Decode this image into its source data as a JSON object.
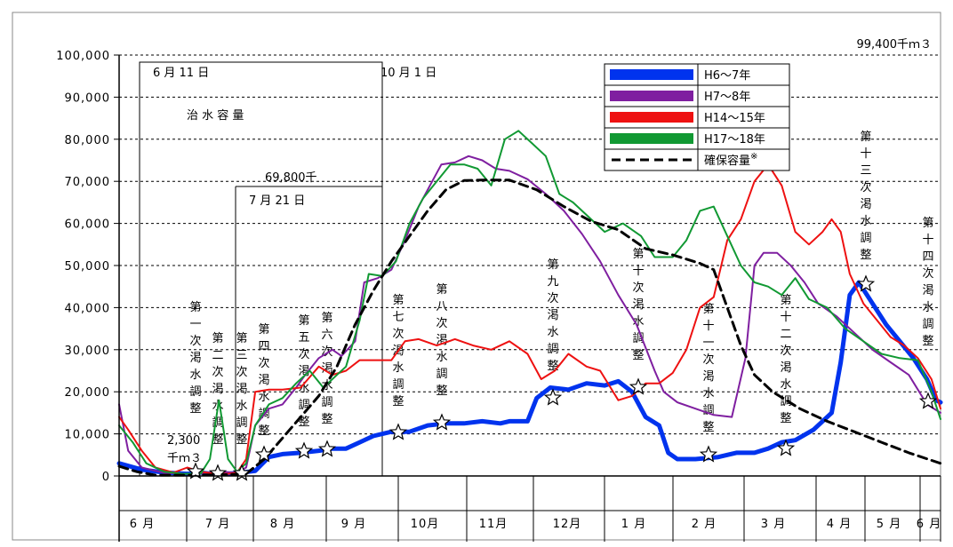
{
  "chart_data": {
    "type": "line",
    "ylim": [
      0,
      100000
    ],
    "y_ticks": [
      "0",
      "10,000",
      "20,000",
      "30,000",
      "40,000",
      "50,000",
      "60,000",
      "70,000",
      "80,000",
      "90,000",
      "100,000"
    ],
    "x_categories": [
      "6 月",
      "7 月",
      "8 月",
      "9 月",
      "10月",
      "11月",
      "12月",
      "1 月",
      "2 月",
      "3 月",
      "4 月",
      "5 月",
      "6 月"
    ],
    "legend": [
      "H6〜7年",
      "H7〜8年",
      "H14〜15年",
      "H17〜18年",
      "確保容量"
    ],
    "legend_note": "※",
    "annotations": {
      "top_right": "99,400千ｍ３",
      "jun11": "6 月 11 日",
      "oct1": "10 月 1 日",
      "flood": "治 水 容 量",
      "cap69800": "69,800千",
      "jul21": "7 月 21 日",
      "cap2300_a": "2,300",
      "cap2300_b": "千ｍ３"
    },
    "adjustments": [
      "第一次渇水調整",
      "第二次渇水調整",
      "第三次渇水調整",
      "第四次渇水調整",
      "第五次渇水調整",
      "第六次渇水調整",
      "第七次渇水調整",
      "第八次渇水調整",
      "第九次渇水調整",
      "第十次渇水調整",
      "第十一次渇水調整",
      "第十二次渇水調整",
      "第十三次渇水調整",
      "第十四次渇水調整"
    ],
    "series": [
      {
        "name": "H6〜7年",
        "color": "#0033ee",
        "width": 5,
        "points": [
          [
            0,
            3000
          ],
          [
            0.5,
            1500
          ],
          [
            1,
            800
          ],
          [
            1.5,
            500
          ],
          [
            1.8,
            800
          ],
          [
            2.1,
            400
          ],
          [
            2.4,
            500
          ],
          [
            2.7,
            800
          ],
          [
            3.0,
            1200
          ],
          [
            3.3,
            4500
          ],
          [
            3.6,
            5200
          ],
          [
            4.0,
            5500
          ],
          [
            4.4,
            6000
          ],
          [
            4.7,
            6500
          ],
          [
            5.0,
            6500
          ],
          [
            5.3,
            8000
          ],
          [
            5.6,
            9500
          ],
          [
            6.0,
            10500
          ],
          [
            6.4,
            10500
          ],
          [
            6.8,
            12000
          ],
          [
            7.2,
            12500
          ],
          [
            7.6,
            12500
          ],
          [
            8.0,
            13000
          ],
          [
            8.4,
            12500
          ],
          [
            8.6,
            13000
          ],
          [
            9.0,
            13000
          ],
          [
            9.2,
            18500
          ],
          [
            9.5,
            21000
          ],
          [
            9.9,
            20500
          ],
          [
            10.3,
            22000
          ],
          [
            10.7,
            21500
          ],
          [
            11.0,
            22500
          ],
          [
            11.3,
            20000
          ],
          [
            11.6,
            14000
          ],
          [
            11.9,
            12000
          ],
          [
            12.1,
            5500
          ],
          [
            12.3,
            4000
          ],
          [
            12.7,
            4000
          ],
          [
            13.2,
            4500
          ],
          [
            13.6,
            5500
          ],
          [
            14.0,
            5500
          ],
          [
            14.3,
            6500
          ],
          [
            14.6,
            8000
          ],
          [
            14.9,
            8500
          ],
          [
            15.3,
            11000
          ],
          [
            15.7,
            15000
          ],
          [
            15.9,
            27000
          ],
          [
            16.1,
            43000
          ],
          [
            16.3,
            46000
          ],
          [
            16.6,
            41000
          ],
          [
            16.9,
            36000
          ],
          [
            17.2,
            32000
          ],
          [
            17.5,
            28000
          ],
          [
            17.8,
            23000
          ],
          [
            18.0,
            18000
          ],
          [
            18.1,
            17500
          ]
        ]
      },
      {
        "name": "H7〜8年",
        "color": "#7f1fa0",
        "width": 2,
        "points": [
          [
            0,
            17000
          ],
          [
            0.2,
            6000
          ],
          [
            0.5,
            2000
          ],
          [
            1.0,
            700
          ],
          [
            1.5,
            500
          ],
          [
            2.0,
            600
          ],
          [
            2.3,
            1000
          ],
          [
            2.6,
            800
          ],
          [
            2.8,
            2000
          ],
          [
            3.0,
            12000
          ],
          [
            3.3,
            16000
          ],
          [
            3.6,
            17000
          ],
          [
            3.9,
            21000
          ],
          [
            4.1,
            24000
          ],
          [
            4.4,
            28000
          ],
          [
            4.7,
            30000
          ],
          [
            4.9,
            28500
          ],
          [
            5.2,
            32000
          ],
          [
            5.4,
            46000
          ],
          [
            5.7,
            47000
          ],
          [
            6.0,
            49000
          ],
          [
            6.3,
            56000
          ],
          [
            6.6,
            64000
          ],
          [
            6.9,
            70000
          ],
          [
            7.1,
            74000
          ],
          [
            7.4,
            74500
          ],
          [
            7.7,
            76000
          ],
          [
            8.0,
            75000
          ],
          [
            8.3,
            73000
          ],
          [
            8.6,
            72500
          ],
          [
            9.0,
            70500
          ],
          [
            9.4,
            67000
          ],
          [
            9.8,
            63000
          ],
          [
            10.2,
            57500
          ],
          [
            10.6,
            51000
          ],
          [
            11.0,
            43000
          ],
          [
            11.4,
            36000
          ],
          [
            11.8,
            25000
          ],
          [
            12.0,
            20000
          ],
          [
            12.3,
            17500
          ],
          [
            12.7,
            16000
          ],
          [
            13.1,
            14500
          ],
          [
            13.5,
            14000
          ],
          [
            13.8,
            28000
          ],
          [
            14.0,
            50000
          ],
          [
            14.2,
            53000
          ],
          [
            14.5,
            53000
          ],
          [
            14.8,
            50000
          ],
          [
            15.1,
            46000
          ],
          [
            15.4,
            41000
          ],
          [
            15.8,
            38000
          ],
          [
            16.2,
            34000
          ],
          [
            16.6,
            30000
          ],
          [
            17.0,
            27000
          ],
          [
            17.4,
            24000
          ],
          [
            17.8,
            17000
          ],
          [
            18.1,
            15000
          ]
        ]
      },
      {
        "name": "H14〜15年",
        "color": "#ee1111",
        "width": 2,
        "points": [
          [
            0,
            14000
          ],
          [
            0.2,
            11000
          ],
          [
            0.5,
            6000
          ],
          [
            0.8,
            2000
          ],
          [
            1.2,
            800
          ],
          [
            1.5,
            2000
          ],
          [
            1.8,
            1000
          ],
          [
            2.1,
            600
          ],
          [
            2.4,
            500
          ],
          [
            2.6,
            800
          ],
          [
            2.8,
            4000
          ],
          [
            3.0,
            20000
          ],
          [
            3.3,
            20500
          ],
          [
            3.6,
            20500
          ],
          [
            4.0,
            21000
          ],
          [
            4.4,
            26000
          ],
          [
            4.7,
            24000
          ],
          [
            5.0,
            25000
          ],
          [
            5.3,
            27500
          ],
          [
            5.7,
            27500
          ],
          [
            6.0,
            27500
          ],
          [
            6.3,
            32000
          ],
          [
            6.6,
            32500
          ],
          [
            7.0,
            31000
          ],
          [
            7.4,
            32500
          ],
          [
            7.8,
            31000
          ],
          [
            8.2,
            30000
          ],
          [
            8.6,
            32000
          ],
          [
            9.0,
            29000
          ],
          [
            9.3,
            23000
          ],
          [
            9.6,
            25000
          ],
          [
            9.9,
            29000
          ],
          [
            10.3,
            26000
          ],
          [
            10.6,
            25000
          ],
          [
            11.0,
            18000
          ],
          [
            11.3,
            19000
          ],
          [
            11.6,
            22000
          ],
          [
            11.9,
            22000
          ],
          [
            12.2,
            24500
          ],
          [
            12.5,
            30000
          ],
          [
            12.8,
            40000
          ],
          [
            13.1,
            42500
          ],
          [
            13.4,
            56000
          ],
          [
            13.7,
            61000
          ],
          [
            14.0,
            70000
          ],
          [
            14.3,
            74000
          ],
          [
            14.6,
            69000
          ],
          [
            14.9,
            58000
          ],
          [
            15.2,
            55000
          ],
          [
            15.5,
            58000
          ],
          [
            15.7,
            61000
          ],
          [
            15.9,
            58000
          ],
          [
            16.1,
            48000
          ],
          [
            16.4,
            41000
          ],
          [
            16.7,
            37000
          ],
          [
            17.0,
            33000
          ],
          [
            17.3,
            31000
          ],
          [
            17.6,
            28000
          ],
          [
            17.9,
            23000
          ],
          [
            18.1,
            16000
          ]
        ]
      },
      {
        "name": "H17〜18年",
        "color": "#119933",
        "width": 2,
        "points": [
          [
            0,
            12000
          ],
          [
            0.3,
            8000
          ],
          [
            0.6,
            3000
          ],
          [
            1.0,
            1000
          ],
          [
            1.4,
            500
          ],
          [
            1.8,
            600
          ],
          [
            2.0,
            4000
          ],
          [
            2.2,
            18000
          ],
          [
            2.4,
            4000
          ],
          [
            2.6,
            1000
          ],
          [
            2.8,
            3000
          ],
          [
            3.0,
            12000
          ],
          [
            3.3,
            17000
          ],
          [
            3.6,
            18500
          ],
          [
            3.9,
            22000
          ],
          [
            4.2,
            25000
          ],
          [
            4.5,
            21000
          ],
          [
            4.8,
            24000
          ],
          [
            5.0,
            26000
          ],
          [
            5.3,
            37000
          ],
          [
            5.5,
            48000
          ],
          [
            5.8,
            47500
          ],
          [
            6.1,
            51000
          ],
          [
            6.4,
            60000
          ],
          [
            6.7,
            66000
          ],
          [
            7.0,
            70000
          ],
          [
            7.3,
            74000
          ],
          [
            7.6,
            74000
          ],
          [
            7.9,
            73000
          ],
          [
            8.2,
            69000
          ],
          [
            8.5,
            80000
          ],
          [
            8.8,
            82000
          ],
          [
            9.1,
            79000
          ],
          [
            9.4,
            76000
          ],
          [
            9.7,
            67000
          ],
          [
            10.0,
            65000
          ],
          [
            10.3,
            62000
          ],
          [
            10.7,
            58000
          ],
          [
            11.1,
            60000
          ],
          [
            11.5,
            57000
          ],
          [
            11.8,
            52000
          ],
          [
            12.2,
            52000
          ],
          [
            12.5,
            56000
          ],
          [
            12.8,
            63000
          ],
          [
            13.1,
            64000
          ],
          [
            13.4,
            57000
          ],
          [
            13.7,
            50000
          ],
          [
            14.0,
            46000
          ],
          [
            14.3,
            45000
          ],
          [
            14.6,
            43000
          ],
          [
            14.9,
            47000
          ],
          [
            15.2,
            42000
          ],
          [
            15.6,
            40000
          ],
          [
            16.0,
            35000
          ],
          [
            16.4,
            32000
          ],
          [
            16.8,
            29000
          ],
          [
            17.2,
            28000
          ],
          [
            17.6,
            27500
          ],
          [
            17.9,
            20000
          ],
          [
            18.1,
            13500
          ]
        ]
      },
      {
        "name": "確保容量",
        "color": "#000000",
        "width": 3,
        "dash": "10,6",
        "points": [
          [
            0,
            2300
          ],
          [
            0.4,
            1000
          ],
          [
            0.8,
            200
          ],
          [
            1.5,
            200
          ],
          [
            2.3,
            300
          ],
          [
            2.8,
            500
          ],
          [
            3.2,
            4000
          ],
          [
            3.6,
            9000
          ],
          [
            4.0,
            14000
          ],
          [
            4.4,
            19000
          ],
          [
            4.8,
            26000
          ],
          [
            5.2,
            36000
          ],
          [
            5.6,
            44000
          ],
          [
            6.0,
            51000
          ],
          [
            6.4,
            57000
          ],
          [
            6.8,
            63000
          ],
          [
            7.2,
            68000
          ],
          [
            7.6,
            70200
          ],
          [
            8.0,
            70300
          ],
          [
            8.6,
            70300
          ],
          [
            9.2,
            68000
          ],
          [
            9.8,
            64000
          ],
          [
            10.4,
            60500
          ],
          [
            11.0,
            58500
          ],
          [
            11.6,
            54000
          ],
          [
            12.2,
            52500
          ],
          [
            12.8,
            50500
          ],
          [
            13.1,
            49000
          ],
          [
            13.4,
            40000
          ],
          [
            13.7,
            31000
          ],
          [
            14.0,
            24000
          ],
          [
            14.4,
            20000
          ],
          [
            15.0,
            16000
          ],
          [
            15.6,
            13000
          ],
          [
            16.2,
            10500
          ],
          [
            16.8,
            8000
          ],
          [
            17.4,
            5500
          ],
          [
            18.1,
            3000
          ]
        ]
      }
    ]
  }
}
